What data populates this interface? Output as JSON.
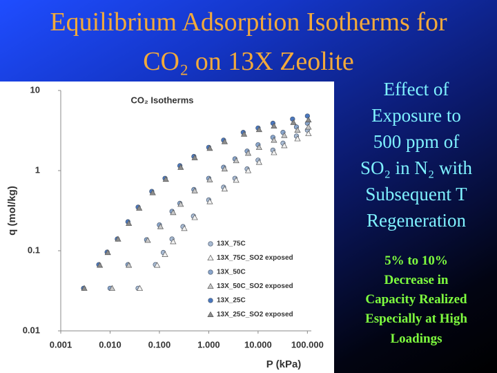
{
  "slide": {
    "title": [
      "Equilibrium Adsorption Isotherms for",
      "CO₂ on 13X Zeolite"
    ],
    "side_text": [
      "Effect of",
      "Exposure to",
      "500 ppm of",
      "SO₂ in N₂ with",
      "Subsequent T",
      "Regeneration"
    ],
    "highlight_text": [
      "5% to 10%",
      "Decrease in",
      "Capacity Realized",
      "Especially at High",
      "Loadings"
    ]
  },
  "chart_data": {
    "type": "scatter",
    "title": "CO₂ Isotherms",
    "x_label": "P (kPa)",
    "y_label": "q (mol/kg)",
    "x_log": true,
    "y_log": true,
    "xlim": [
      0.001,
      120
    ],
    "ylim": [
      0.01,
      10
    ],
    "xticks": [
      0.001,
      {
        "value": 0.01,
        "label": "0.010"
      },
      {
        "value": 0.1,
        "label": "0.100"
      },
      {
        "value": 1,
        "label": "1.000"
      },
      {
        "value": 10,
        "label": "10.000"
      },
      {
        "value": 100,
        "label": "100.000"
      }
    ],
    "yticks": [
      0.01,
      0.1,
      1,
      10
    ],
    "series": [
      {
        "name": "13X_75C",
        "color": "#a9bbd3",
        "marker": "circle",
        "x": [
          0.037,
          0.083,
          0.12,
          0.18,
          0.3,
          0.49,
          1,
          2,
          3.4,
          6,
          10,
          20,
          32,
          60,
          100
        ],
        "values": [
          0.034,
          0.067,
          0.095,
          0.14,
          0.2,
          0.27,
          0.43,
          0.62,
          0.8,
          1.05,
          1.35,
          1.8,
          2.2,
          2.7,
          3.2
        ]
      },
      {
        "name": "13X_75C_SO2 exposed",
        "color": "#f2f2f2",
        "marker": "triangle",
        "x": [
          0.04,
          0.09,
          0.13,
          0.19,
          0.32,
          0.52,
          1.05,
          2.1,
          3.6,
          6.3,
          10.5,
          21,
          34,
          63,
          105
        ],
        "values": [
          0.034,
          0.066,
          0.09,
          0.13,
          0.19,
          0.26,
          0.41,
          0.59,
          0.76,
          1.0,
          1.27,
          1.68,
          2.05,
          2.5,
          2.9
        ]
      },
      {
        "name": "13X_50C",
        "color": "#8aa6cc",
        "marker": "circle",
        "x": [
          0.01,
          0.023,
          0.055,
          0.1,
          0.18,
          0.26,
          0.5,
          1,
          2,
          3.4,
          6,
          10,
          20,
          32,
          60,
          100
        ],
        "values": [
          0.034,
          0.067,
          0.137,
          0.21,
          0.31,
          0.39,
          0.58,
          0.8,
          1.1,
          1.4,
          1.75,
          2.1,
          2.6,
          3.0,
          3.5,
          3.9
        ]
      },
      {
        "name": "13X_50C_SO2 exposed",
        "color": "#c8c8c8",
        "marker": "triangle",
        "x": [
          0.011,
          0.024,
          0.058,
          0.105,
          0.19,
          0.27,
          0.52,
          1.05,
          2.1,
          3.6,
          6.3,
          10.5,
          21,
          34,
          63,
          105
        ],
        "values": [
          0.034,
          0.066,
          0.135,
          0.2,
          0.3,
          0.38,
          0.56,
          0.77,
          1.05,
          1.33,
          1.65,
          1.95,
          2.4,
          2.75,
          3.2,
          3.5
        ]
      },
      {
        "name": "13X_25C",
        "color": "#4a78c0",
        "marker": "circle",
        "x": [
          0.0029,
          0.0059,
          0.0087,
          0.014,
          0.023,
          0.037,
          0.07,
          0.13,
          0.26,
          0.5,
          1,
          2,
          5,
          10,
          20,
          50,
          100
        ],
        "values": [
          0.034,
          0.067,
          0.096,
          0.14,
          0.23,
          0.35,
          0.55,
          0.8,
          1.15,
          1.5,
          1.95,
          2.4,
          3.0,
          3.4,
          3.9,
          4.4,
          4.8
        ]
      },
      {
        "name": "13X_25C_SO2 exposed",
        "color": "#8c8c8c",
        "marker": "triangle",
        "x": [
          0.003,
          0.0062,
          0.009,
          0.0145,
          0.024,
          0.039,
          0.073,
          0.135,
          0.27,
          0.52,
          1.05,
          2.1,
          5.2,
          10.5,
          21,
          52,
          105
        ],
        "values": [
          0.034,
          0.066,
          0.095,
          0.14,
          0.22,
          0.34,
          0.53,
          0.78,
          1.1,
          1.45,
          1.9,
          2.3,
          2.85,
          3.25,
          3.6,
          4.0,
          4.3
        ]
      }
    ]
  }
}
